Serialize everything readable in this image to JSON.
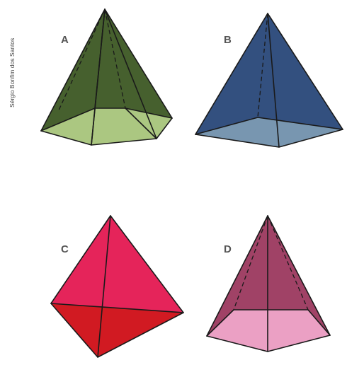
{
  "credit": "Sérgio Bonfim dos Santos",
  "figures": [
    {
      "label": "A",
      "name": "hexagonal-pyramid",
      "face_color": "#46602e",
      "base_color": "#abc781"
    },
    {
      "label": "B",
      "name": "square-pyramid",
      "face_color": "#33507f",
      "base_color": "#7896b0"
    },
    {
      "label": "C",
      "name": "triangular-pyramid",
      "face_color": "#e5245a",
      "base_color": "#d11a22"
    },
    {
      "label": "D",
      "name": "pentagonal-pyramid",
      "face_color": "#a04266",
      "base_color": "#eba0c4"
    }
  ]
}
